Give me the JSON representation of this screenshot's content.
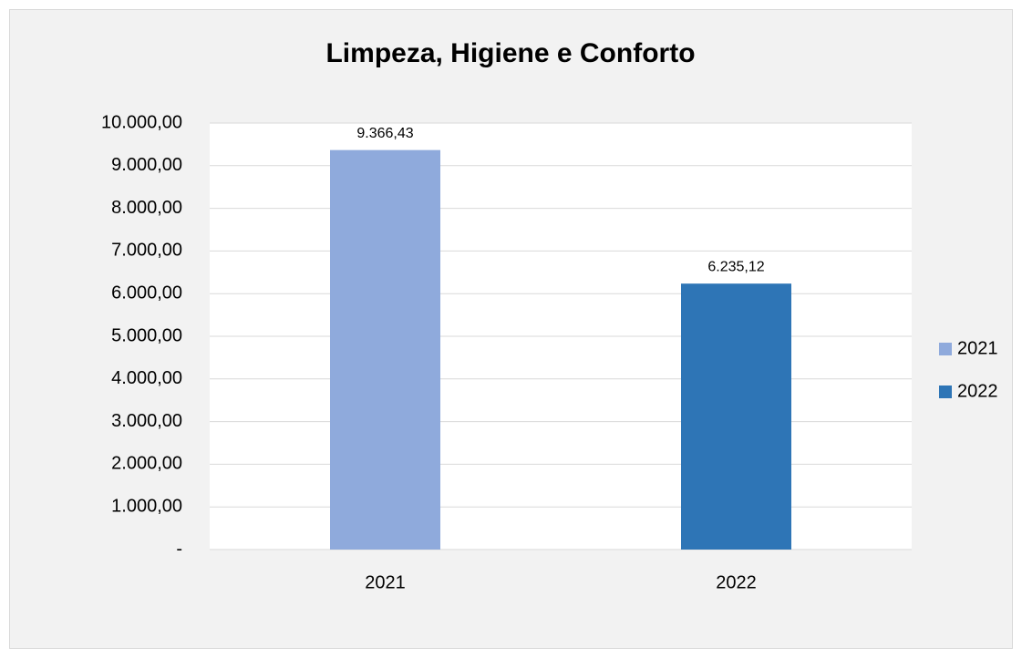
{
  "chart_data": {
    "type": "bar",
    "title": "Limpeza, Higiene e Conforto",
    "categories": [
      "2021",
      "2022"
    ],
    "series": [
      {
        "name": "2021",
        "color": "#8faadc",
        "values": [
          9366.43,
          null
        ],
        "value_labels": [
          "9.366,43",
          null
        ]
      },
      {
        "name": "2022",
        "color": "#2e75b6",
        "values": [
          null,
          6235.12
        ],
        "value_labels": [
          null,
          "6.235,12"
        ]
      }
    ],
    "ylim": [
      0,
      10000
    ],
    "yticks": [
      {
        "value": 0,
        "label": "-"
      },
      {
        "value": 1000,
        "label": "1.000,00"
      },
      {
        "value": 2000,
        "label": "2.000,00"
      },
      {
        "value": 3000,
        "label": "3.000,00"
      },
      {
        "value": 4000,
        "label": "4.000,00"
      },
      {
        "value": 5000,
        "label": "5.000,00"
      },
      {
        "value": 6000,
        "label": "6.000,00"
      },
      {
        "value": 7000,
        "label": "7.000,00"
      },
      {
        "value": 8000,
        "label": "8.000,00"
      },
      {
        "value": 9000,
        "label": "9.000,00"
      },
      {
        "value": 10000,
        "label": "10.000,00"
      }
    ],
    "grid": true,
    "legend": "right"
  }
}
